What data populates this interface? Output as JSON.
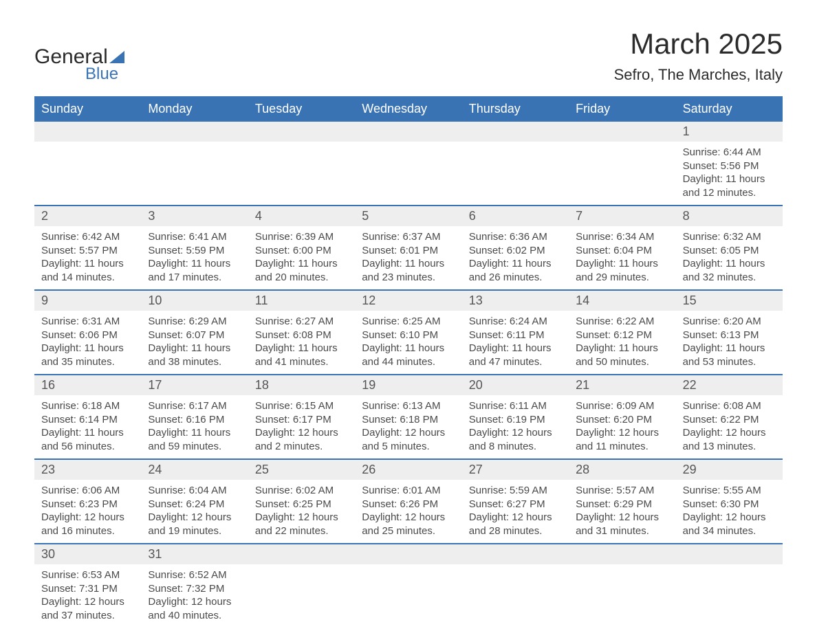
{
  "brand": {
    "name1": "General",
    "name2": "Blue"
  },
  "title": "March 2025",
  "location": "Sefro, The Marches, Italy",
  "colors": {
    "header_bg": "#3a73b4",
    "header_text": "#ffffff",
    "daynum_bg": "#eeeeee",
    "row_divider": "#3a73b4",
    "body_text": "#4a4a4a",
    "page_bg": "#ffffff"
  },
  "typography": {
    "title_fontsize_pt": 32,
    "location_fontsize_pt": 17,
    "header_fontsize_pt": 14,
    "daynum_fontsize_pt": 14,
    "cell_fontsize_pt": 11
  },
  "layout": {
    "columns": 7,
    "weeks": 6,
    "start_day_of_week": "Sunday"
  },
  "weekdays": [
    "Sunday",
    "Monday",
    "Tuesday",
    "Wednesday",
    "Thursday",
    "Friday",
    "Saturday"
  ],
  "labels": {
    "sunrise": "Sunrise:",
    "sunset": "Sunset:",
    "daylight": "Daylight:"
  },
  "weeks": [
    [
      null,
      null,
      null,
      null,
      null,
      null,
      {
        "day": "1",
        "sunrise": "6:44 AM",
        "sunset": "5:56 PM",
        "daylight": "11 hours and 12 minutes."
      }
    ],
    [
      {
        "day": "2",
        "sunrise": "6:42 AM",
        "sunset": "5:57 PM",
        "daylight": "11 hours and 14 minutes."
      },
      {
        "day": "3",
        "sunrise": "6:41 AM",
        "sunset": "5:59 PM",
        "daylight": "11 hours and 17 minutes."
      },
      {
        "day": "4",
        "sunrise": "6:39 AM",
        "sunset": "6:00 PM",
        "daylight": "11 hours and 20 minutes."
      },
      {
        "day": "5",
        "sunrise": "6:37 AM",
        "sunset": "6:01 PM",
        "daylight": "11 hours and 23 minutes."
      },
      {
        "day": "6",
        "sunrise": "6:36 AM",
        "sunset": "6:02 PM",
        "daylight": "11 hours and 26 minutes."
      },
      {
        "day": "7",
        "sunrise": "6:34 AM",
        "sunset": "6:04 PM",
        "daylight": "11 hours and 29 minutes."
      },
      {
        "day": "8",
        "sunrise": "6:32 AM",
        "sunset": "6:05 PM",
        "daylight": "11 hours and 32 minutes."
      }
    ],
    [
      {
        "day": "9",
        "sunrise": "6:31 AM",
        "sunset": "6:06 PM",
        "daylight": "11 hours and 35 minutes."
      },
      {
        "day": "10",
        "sunrise": "6:29 AM",
        "sunset": "6:07 PM",
        "daylight": "11 hours and 38 minutes."
      },
      {
        "day": "11",
        "sunrise": "6:27 AM",
        "sunset": "6:08 PM",
        "daylight": "11 hours and 41 minutes."
      },
      {
        "day": "12",
        "sunrise": "6:25 AM",
        "sunset": "6:10 PM",
        "daylight": "11 hours and 44 minutes."
      },
      {
        "day": "13",
        "sunrise": "6:24 AM",
        "sunset": "6:11 PM",
        "daylight": "11 hours and 47 minutes."
      },
      {
        "day": "14",
        "sunrise": "6:22 AM",
        "sunset": "6:12 PM",
        "daylight": "11 hours and 50 minutes."
      },
      {
        "day": "15",
        "sunrise": "6:20 AM",
        "sunset": "6:13 PM",
        "daylight": "11 hours and 53 minutes."
      }
    ],
    [
      {
        "day": "16",
        "sunrise": "6:18 AM",
        "sunset": "6:14 PM",
        "daylight": "11 hours and 56 minutes."
      },
      {
        "day": "17",
        "sunrise": "6:17 AM",
        "sunset": "6:16 PM",
        "daylight": "11 hours and 59 minutes."
      },
      {
        "day": "18",
        "sunrise": "6:15 AM",
        "sunset": "6:17 PM",
        "daylight": "12 hours and 2 minutes."
      },
      {
        "day": "19",
        "sunrise": "6:13 AM",
        "sunset": "6:18 PM",
        "daylight": "12 hours and 5 minutes."
      },
      {
        "day": "20",
        "sunrise": "6:11 AM",
        "sunset": "6:19 PM",
        "daylight": "12 hours and 8 minutes."
      },
      {
        "day": "21",
        "sunrise": "6:09 AM",
        "sunset": "6:20 PM",
        "daylight": "12 hours and 11 minutes."
      },
      {
        "day": "22",
        "sunrise": "6:08 AM",
        "sunset": "6:22 PM",
        "daylight": "12 hours and 13 minutes."
      }
    ],
    [
      {
        "day": "23",
        "sunrise": "6:06 AM",
        "sunset": "6:23 PM",
        "daylight": "12 hours and 16 minutes."
      },
      {
        "day": "24",
        "sunrise": "6:04 AM",
        "sunset": "6:24 PM",
        "daylight": "12 hours and 19 minutes."
      },
      {
        "day": "25",
        "sunrise": "6:02 AM",
        "sunset": "6:25 PM",
        "daylight": "12 hours and 22 minutes."
      },
      {
        "day": "26",
        "sunrise": "6:01 AM",
        "sunset": "6:26 PM",
        "daylight": "12 hours and 25 minutes."
      },
      {
        "day": "27",
        "sunrise": "5:59 AM",
        "sunset": "6:27 PM",
        "daylight": "12 hours and 28 minutes."
      },
      {
        "day": "28",
        "sunrise": "5:57 AM",
        "sunset": "6:29 PM",
        "daylight": "12 hours and 31 minutes."
      },
      {
        "day": "29",
        "sunrise": "5:55 AM",
        "sunset": "6:30 PM",
        "daylight": "12 hours and 34 minutes."
      }
    ],
    [
      {
        "day": "30",
        "sunrise": "6:53 AM",
        "sunset": "7:31 PM",
        "daylight": "12 hours and 37 minutes."
      },
      {
        "day": "31",
        "sunrise": "6:52 AM",
        "sunset": "7:32 PM",
        "daylight": "12 hours and 40 minutes."
      },
      null,
      null,
      null,
      null,
      null
    ]
  ]
}
